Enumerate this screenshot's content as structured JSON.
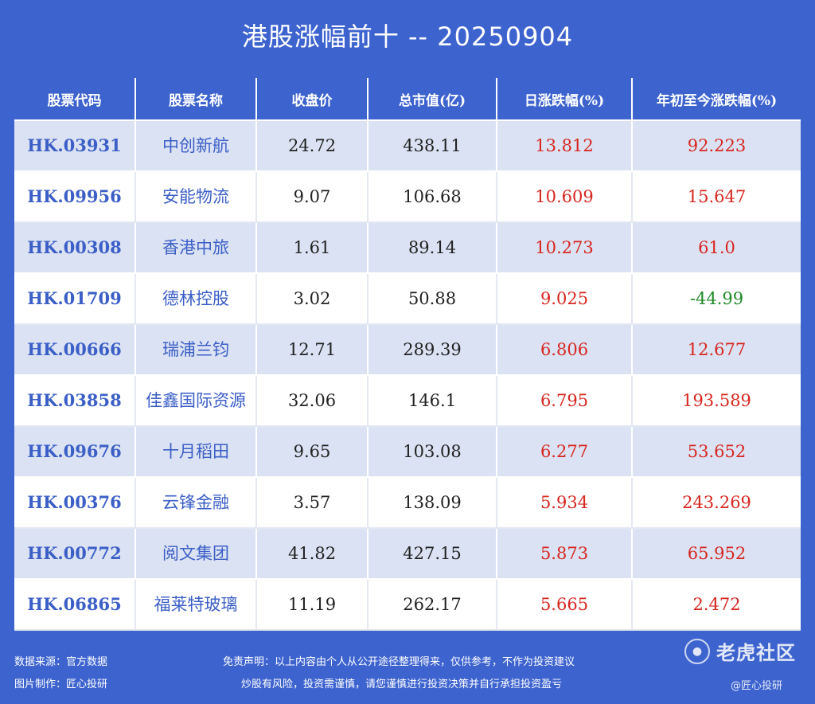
{
  "title": "港股涨幅前十 -- 20250904",
  "columns": [
    "股票代码",
    "股票名称",
    "收盘价",
    "总市值(亿)",
    "日涨跌幅(%)",
    "年初至今涨跌幅(%)"
  ],
  "rows": [
    {
      "code": "HK.03931",
      "name": "中创新航",
      "close": "24.72",
      "market_cap": "438.11",
      "daily_change": "13.812",
      "ytd_change": "92.223"
    },
    {
      "code": "HK.09956",
      "name": "安能物流",
      "close": "9.07",
      "market_cap": "106.68",
      "daily_change": "10.609",
      "ytd_change": "15.647"
    },
    {
      "code": "HK.00308",
      "name": "香港中旅",
      "close": "1.61",
      "market_cap": "89.14",
      "daily_change": "10.273",
      "ytd_change": "61.0"
    },
    {
      "code": "HK.01709",
      "name": "德林控股",
      "close": "3.02",
      "market_cap": "50.88",
      "daily_change": "9.025",
      "ytd_change": "-44.99"
    },
    {
      "code": "HK.00666",
      "name": "瑞浦兰钧",
      "close": "12.71",
      "market_cap": "289.39",
      "daily_change": "6.806",
      "ytd_change": "12.677"
    },
    {
      "code": "HK.03858",
      "name": "佳鑫国际资源",
      "close": "32.06",
      "market_cap": "146.1",
      "daily_change": "6.795",
      "ytd_change": "193.589"
    },
    {
      "code": "HK.09676",
      "name": "十月稻田",
      "close": "9.65",
      "market_cap": "103.08",
      "daily_change": "6.277",
      "ytd_change": "53.652"
    },
    {
      "code": "HK.00376",
      "name": "云锋金融",
      "close": "3.57",
      "market_cap": "138.09",
      "daily_change": "5.934",
      "ytd_change": "243.269"
    },
    {
      "code": "HK.00772",
      "name": "阅文集团",
      "close": "41.82",
      "market_cap": "427.15",
      "daily_change": "5.873",
      "ytd_change": "65.952"
    },
    {
      "code": "HK.06865",
      "name": "福莱特玻璃",
      "close": "11.19",
      "market_cap": "262.17",
      "daily_change": "5.665",
      "ytd_change": "2.472"
    }
  ],
  "footer": {
    "source": "数据来源：官方数据",
    "made_by": "图片制作：匠心投研",
    "disclaimer_1": "免责声明：以上内容由个人从公开途径整理得来，仅供参考，不作为投资建议",
    "disclaimer_2": "炒股有风险，投资需谨慎，请您谨慎进行投资决策并自行承担投资盈亏",
    "watermark": "老虎社区",
    "watermark_sub": "@匠心投研"
  },
  "colors": {
    "header_bg": "#3d63cf",
    "row_alt": "#dbe2f3",
    "up": "#d7261f",
    "down": "#1f8a27",
    "code": "#3b5fc7"
  },
  "icons": {
    "watermark_logo": "tiger-logo-icon"
  }
}
